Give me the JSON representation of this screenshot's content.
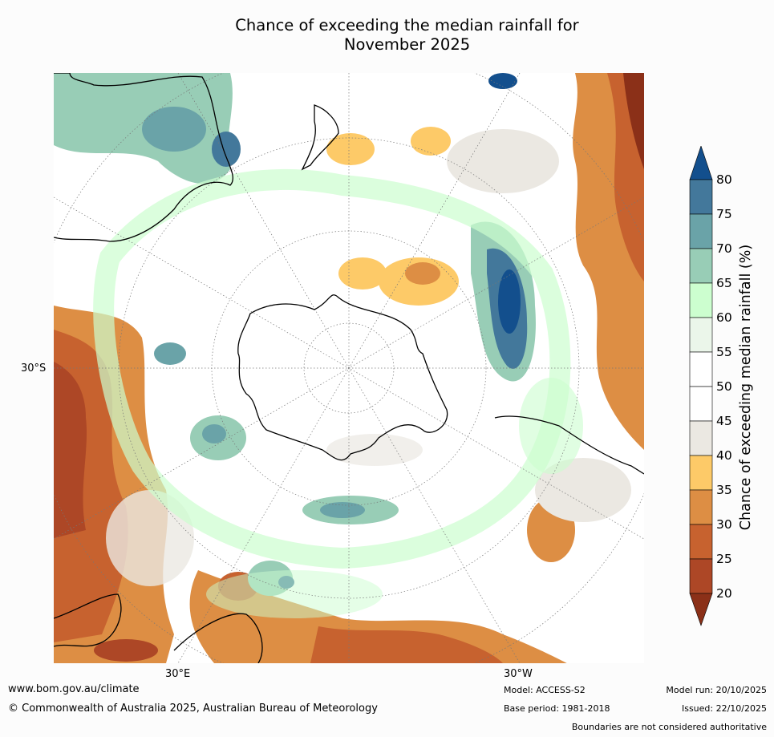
{
  "title_line1": "Chance of exceeding the median rainfall for",
  "title_line2": "November 2025",
  "lat_label": "30°S",
  "lon_labels": {
    "left": "30°E",
    "right": "30°W"
  },
  "colorbar": {
    "title": "Chance of exceeding median rainfall (%)",
    "ticks": [
      "20",
      "25",
      "30",
      "35",
      "40",
      "45",
      "50",
      "55",
      "60",
      "65",
      "70",
      "75",
      "80"
    ],
    "colors": {
      "below20": "#8b3018",
      "b20_25": "#ad4726",
      "b25_30": "#c7622f",
      "b30_35": "#dd8e44",
      "b35_40": "#fdca68",
      "b40_45": "#ebe8e2",
      "b45_50": "#ffffff",
      "b50_55": "#ffffff",
      "b55_60": "#ebf6ea",
      "b60_65": "#ccfecf",
      "b65_70": "#98cdb6",
      "b70_75": "#6aa3a8",
      "b75_80": "#43789b",
      "above80": "#134f8d"
    }
  },
  "footer": {
    "website": "www.bom.gov.au/climate",
    "copyright": "© Commonwealth of Australia 2025, Australian Bureau of Meteorology",
    "model": "Model: ACCESS-S2",
    "base_period": "Base period: 1981-2018",
    "model_run": "Model run: 20/10/2025",
    "issued": "Issued: 22/10/2025",
    "disclaimer": "Boundaries are not considered authoritative"
  }
}
